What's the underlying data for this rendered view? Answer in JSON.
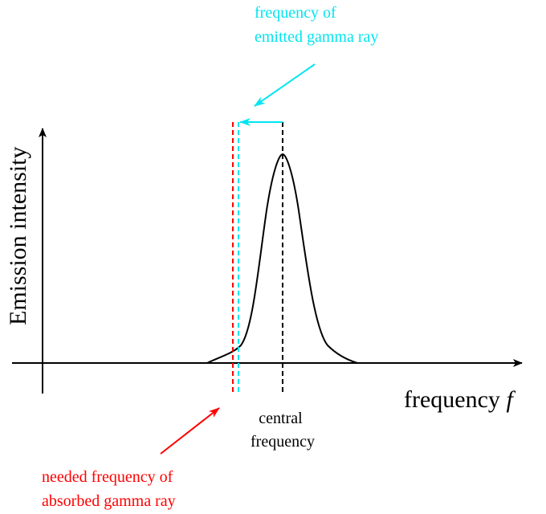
{
  "axes": {
    "y_label": "Emission intensity",
    "x_label": "frequency ",
    "x_symbol": "f"
  },
  "annotations": {
    "emitted": {
      "line1": "frequency of",
      "line2": "emitted gamma ray"
    },
    "central": {
      "line1": "central",
      "line2": "frequency"
    },
    "absorbed": {
      "line1": "needed frequency of",
      "line2": "absorbed gamma ray"
    }
  },
  "colors": {
    "axis": "#000000",
    "curve": "#000000",
    "emitted": "#00e5f0",
    "absorbed": "#ff0000",
    "central": "#000000"
  }
}
